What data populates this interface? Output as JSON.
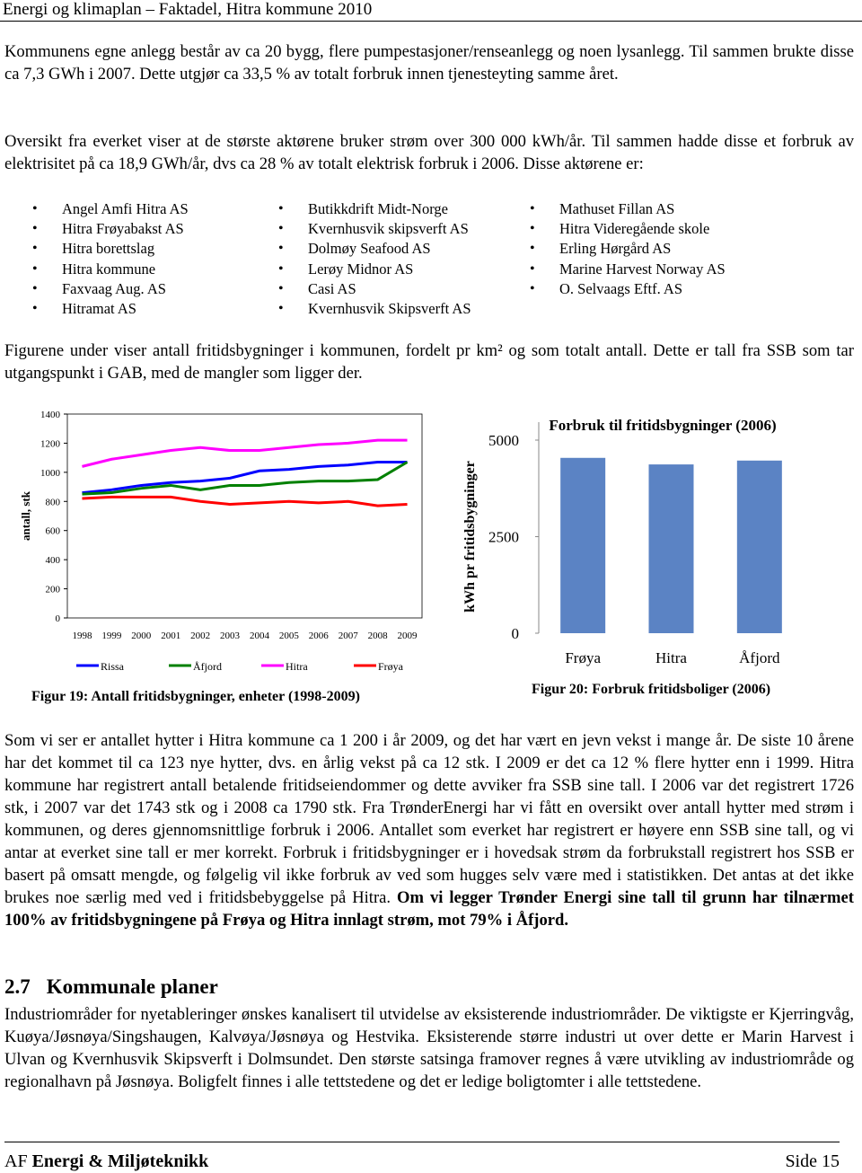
{
  "header": {
    "title": "Energi og klimaplan – Faktadel, Hitra kommune 2010"
  },
  "paragraphs": [
    "Kommunens egne anlegg består av ca 20 bygg, flere pumpestasjoner/renseanlegg og noen lysanlegg. Til sammen brukte disse ca 7,3 GWh i 2007. Dette utgjør ca 33,5 % av totalt forbruk innen tjenesteyting samme året.",
    "Oversikt fra everket viser at de største aktørene bruker strøm over 300 000 kWh/år. Til sammen hadde disse et forbruk av elektrisitet på ca 18,9 GWh/år, dvs ca 28 % av totalt elektrisk forbruk i 2006. Disse aktørene er:",
    "Figurene under viser antall fritidsbygninger i kommunen, fordelt pr km² og som totalt antall. Dette er tall fra SSB som tar utgangspunkt i GAB, med de mangler som ligger der."
  ],
  "bullets": [
    [
      "Angel Amfi Hitra AS",
      "Hitra Frøyabakst AS",
      "Hitra borettslag",
      "Hitra kommune",
      "Faxvaag Aug. AS",
      "Hitramat AS"
    ],
    [
      "Butikkdrift Midt-Norge",
      "Kvernhusvik skipsverft AS",
      "Dolmøy Seafood AS",
      "Lerøy Midnor AS",
      "Casi AS",
      "Kvernhusvik Skipsverft AS"
    ],
    [
      "Mathuset Fillan AS",
      "Hitra Videregående skole",
      "Erling Hørgård AS",
      "Marine Harvest Norway AS",
      "O. Selvaags Eftf. AS"
    ]
  ],
  "chart_data": [
    {
      "type": "line",
      "ylabel": "antall, stk",
      "caption": "Figur 19: Antall fritidsbygninger, enheter (1998-2009)",
      "categories": [
        "1998",
        "1999",
        "2000",
        "2001",
        "2002",
        "2003",
        "2004",
        "2005",
        "2006",
        "2007",
        "2008",
        "2009"
      ],
      "ylim": [
        0,
        1400
      ],
      "yticks": [
        0,
        200,
        400,
        600,
        800,
        1000,
        1200,
        1400
      ],
      "series": [
        {
          "name": "Rissa",
          "color": "#0000ff",
          "values": [
            860,
            880,
            910,
            930,
            940,
            960,
            1010,
            1020,
            1040,
            1050,
            1070,
            1070
          ]
        },
        {
          "name": "Åfjord",
          "color": "#008000",
          "values": [
            850,
            860,
            890,
            910,
            880,
            910,
            910,
            930,
            940,
            940,
            950,
            1070
          ]
        },
        {
          "name": "Hitra",
          "color": "#ff00ff",
          "values": [
            1040,
            1090,
            1120,
            1150,
            1170,
            1150,
            1150,
            1170,
            1190,
            1200,
            1220,
            1220
          ]
        },
        {
          "name": "Frøya",
          "color": "#ff0000",
          "values": [
            820,
            830,
            830,
            830,
            800,
            780,
            790,
            800,
            790,
            800,
            770,
            780
          ]
        }
      ]
    },
    {
      "type": "bar",
      "title": "Forbruk til fritidsbygninger (2006)",
      "ylabel": "kWh pr fritidsbygninger",
      "caption": "Figur 20: Forbruk fritidsboliger (2006)",
      "color": "#5b83c4",
      "categories": [
        "Frøya",
        "Hitra",
        "Åfjord"
      ],
      "values": [
        4540,
        4370,
        4470
      ],
      "ylim": [
        0,
        5000
      ],
      "yticks": [
        0,
        2500,
        5000
      ]
    }
  ],
  "paragraph4": {
    "text": "Som vi ser er antallet hytter i Hitra kommune ca 1 200 i år 2009, og det har vært en jevn vekst i mange år. De siste 10 årene har det kommet til ca 123 nye hytter, dvs. en årlig vekst på ca 12 stk. I 2009 er det ca 12 % flere hytter enn i 1999. Hitra kommune har registrert antall betalende fritidseiendommer og dette avviker fra SSB sine tall. I 2006 var det registrert 1726 stk, i 2007 var det 1743 stk og i 2008 ca 1790 stk. Fra TrønderEnergi har vi fått en oversikt over antall hytter med strøm i kommunen, og deres gjennomsnittlige forbruk i 2006. Antallet som everket har registrert er høyere enn SSB sine tall, og vi antar at everket sine tall er mer korrekt. Forbruk i fritidsbygninger er i hovedsak strøm da forbrukstall registrert hos SSB er basert på omsatt mengde, og følgelig vil ikke forbruk av ved som hugges selv være med i statistikken. Det antas at det ikke brukes noe særlig med ved i fritidsbebyggelse på Hitra.",
    "bold": "Om vi legger Trønder Energi sine tall til grunn har tilnærmet 100% av fritidsbygningene på Frøya og Hitra innlagt strøm, mot 79% i Åfjord."
  },
  "section": {
    "number": "2.7",
    "title": "Kommunale planer",
    "text": "Industriområder for nyetableringer ønskes kanalisert til utvidelse av eksisterende industriområder. De viktigste er Kjerringvåg, Kuøya/Jøsnøya/Singshaugen,  Kalvøya/Jøsnøya  og Hestvika. Eksisterende større industri ut over dette er Marin Harvest i Ulvan og Kvernhusvik Skipsverft i Dolmsundet. Den største satsinga framover regnes å være utvikling av industriområde og regionalhavn på Jøsnøya. Boligfelt finnes i alle tettstedene og det er ledige boligtomter i alle tettstedene."
  },
  "footer": {
    "prefix": "AF",
    "name": "Energi & Miljøteknikk",
    "page": "Side 15"
  }
}
